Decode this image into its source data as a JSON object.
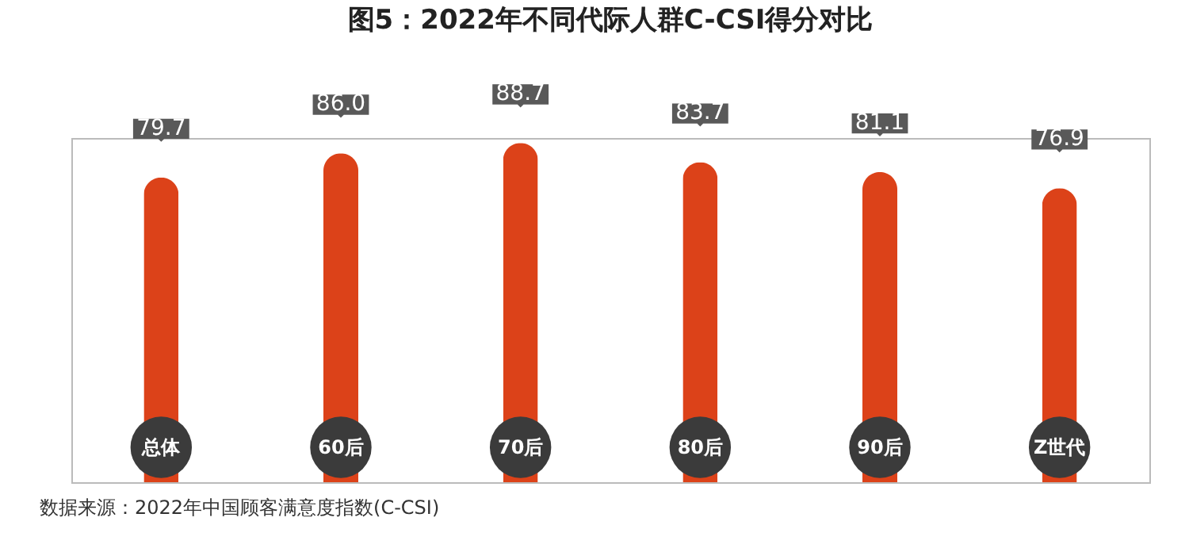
{
  "chart_data": {
    "type": "bar",
    "title": "图5：2022年不同代际人群C-CSI得分对比",
    "categories": [
      "总体",
      "60后",
      "70后",
      "80后",
      "90后",
      "Z世代"
    ],
    "values": [
      79.7,
      86.0,
      88.7,
      83.7,
      81.1,
      76.9
    ],
    "value_labels": [
      "79.7",
      "86.0",
      "88.7",
      "83.7",
      "81.1",
      "76.9"
    ],
    "color": "#dc4219",
    "tick_labels": "x",
    "annotations": [
      "数据来源：2022年中国顾客满意度指数(C-CSI)"
    ]
  }
}
